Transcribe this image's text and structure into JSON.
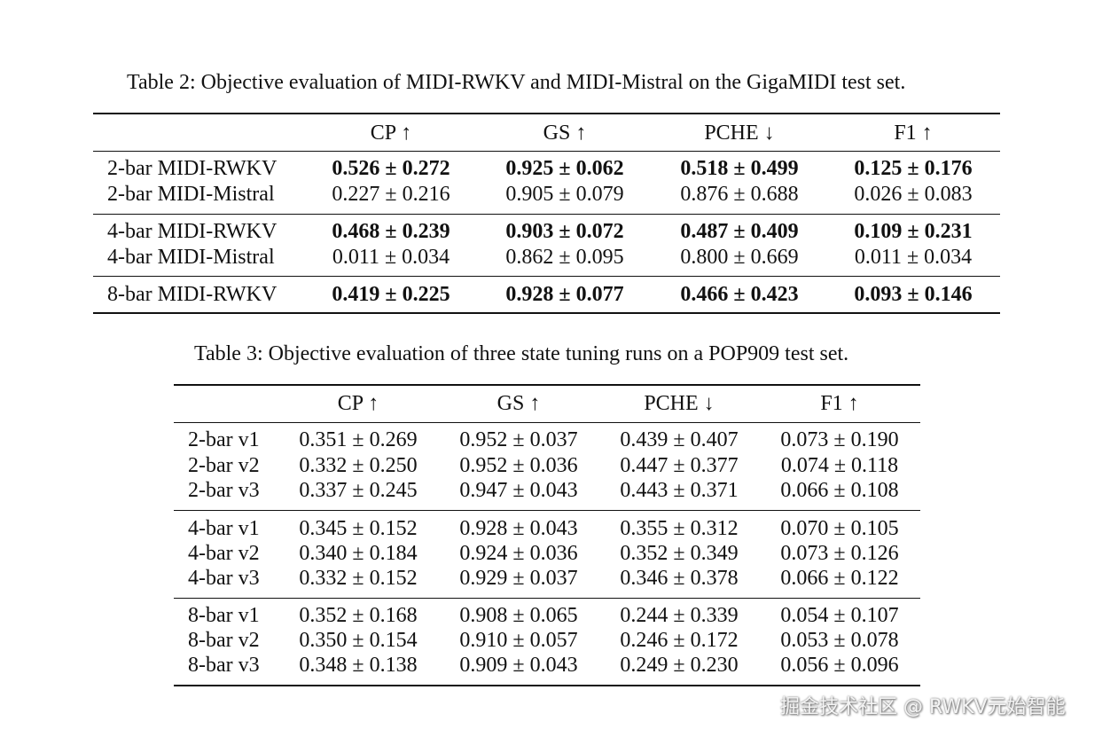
{
  "table2": {
    "caption": "Table 2: Objective evaluation of MIDI-RWKV and MIDI-Mistral on the GigaMIDI test set.",
    "headers": [
      "",
      "CP ↑",
      "GS ↑",
      "PCHE ↓",
      "F1 ↑"
    ],
    "groups": [
      [
        {
          "label": "2-bar MIDI-RWKV",
          "bold": true,
          "values": [
            "0.526 ± 0.272",
            "0.925 ± 0.062",
            "0.518 ± 0.499",
            "0.125 ± 0.176"
          ]
        },
        {
          "label": "2-bar MIDI-Mistral",
          "bold": false,
          "values": [
            "0.227 ± 0.216",
            "0.905 ± 0.079",
            "0.876 ± 0.688",
            "0.026 ± 0.083"
          ]
        }
      ],
      [
        {
          "label": "4-bar MIDI-RWKV",
          "bold": true,
          "values": [
            "0.468 ± 0.239",
            "0.903 ± 0.072",
            "0.487 ± 0.409",
            "0.109 ± 0.231"
          ]
        },
        {
          "label": "4-bar MIDI-Mistral",
          "bold": false,
          "values": [
            "0.011 ± 0.034",
            "0.862 ± 0.095",
            "0.800 ± 0.669",
            "0.011 ± 0.034"
          ]
        }
      ],
      [
        {
          "label": "8-bar MIDI-RWKV",
          "bold": true,
          "values": [
            "0.419 ± 0.225",
            "0.928 ± 0.077",
            "0.466 ± 0.423",
            "0.093 ± 0.146"
          ]
        }
      ]
    ]
  },
  "table3": {
    "caption": "Table 3: Objective evaluation of three state tuning runs on a POP909 test set.",
    "headers": [
      "",
      "CP ↑",
      "GS ↑",
      "PCHE ↓",
      "F1 ↑"
    ],
    "groups": [
      [
        {
          "label": "2-bar v1",
          "bold": false,
          "values": [
            "0.351 ± 0.269",
            "0.952 ± 0.037",
            "0.439 ± 0.407",
            "0.073 ± 0.190"
          ]
        },
        {
          "label": "2-bar v2",
          "bold": false,
          "values": [
            "0.332 ± 0.250",
            "0.952 ± 0.036",
            "0.447 ± 0.377",
            "0.074 ± 0.118"
          ]
        },
        {
          "label": "2-bar v3",
          "bold": false,
          "values": [
            "0.337 ± 0.245",
            "0.947 ± 0.043",
            "0.443 ± 0.371",
            "0.066 ± 0.108"
          ]
        }
      ],
      [
        {
          "label": "4-bar v1",
          "bold": false,
          "values": [
            "0.345 ± 0.152",
            "0.928 ± 0.043",
            "0.355 ± 0.312",
            "0.070 ± 0.105"
          ]
        },
        {
          "label": "4-bar v2",
          "bold": false,
          "values": [
            "0.340 ± 0.184",
            "0.924 ± 0.036",
            "0.352 ± 0.349",
            "0.073 ± 0.126"
          ]
        },
        {
          "label": "4-bar v3",
          "bold": false,
          "values": [
            "0.332 ± 0.152",
            "0.929 ± 0.037",
            "0.346 ± 0.378",
            "0.066 ± 0.122"
          ]
        }
      ],
      [
        {
          "label": "8-bar v1",
          "bold": false,
          "values": [
            "0.352 ± 0.168",
            "0.908 ± 0.065",
            "0.244 ± 0.339",
            "0.054 ± 0.107"
          ]
        },
        {
          "label": "8-bar v2",
          "bold": false,
          "values": [
            "0.350 ± 0.154",
            "0.910 ± 0.057",
            "0.246 ± 0.172",
            "0.053 ± 0.078"
          ]
        },
        {
          "label": "8-bar v3",
          "bold": false,
          "values": [
            "0.348 ± 0.138",
            "0.909 ± 0.043",
            "0.249 ± 0.230",
            "0.056 ± 0.096"
          ]
        }
      ]
    ]
  },
  "watermark": "掘金技术社区 @ RWKV元始智能"
}
